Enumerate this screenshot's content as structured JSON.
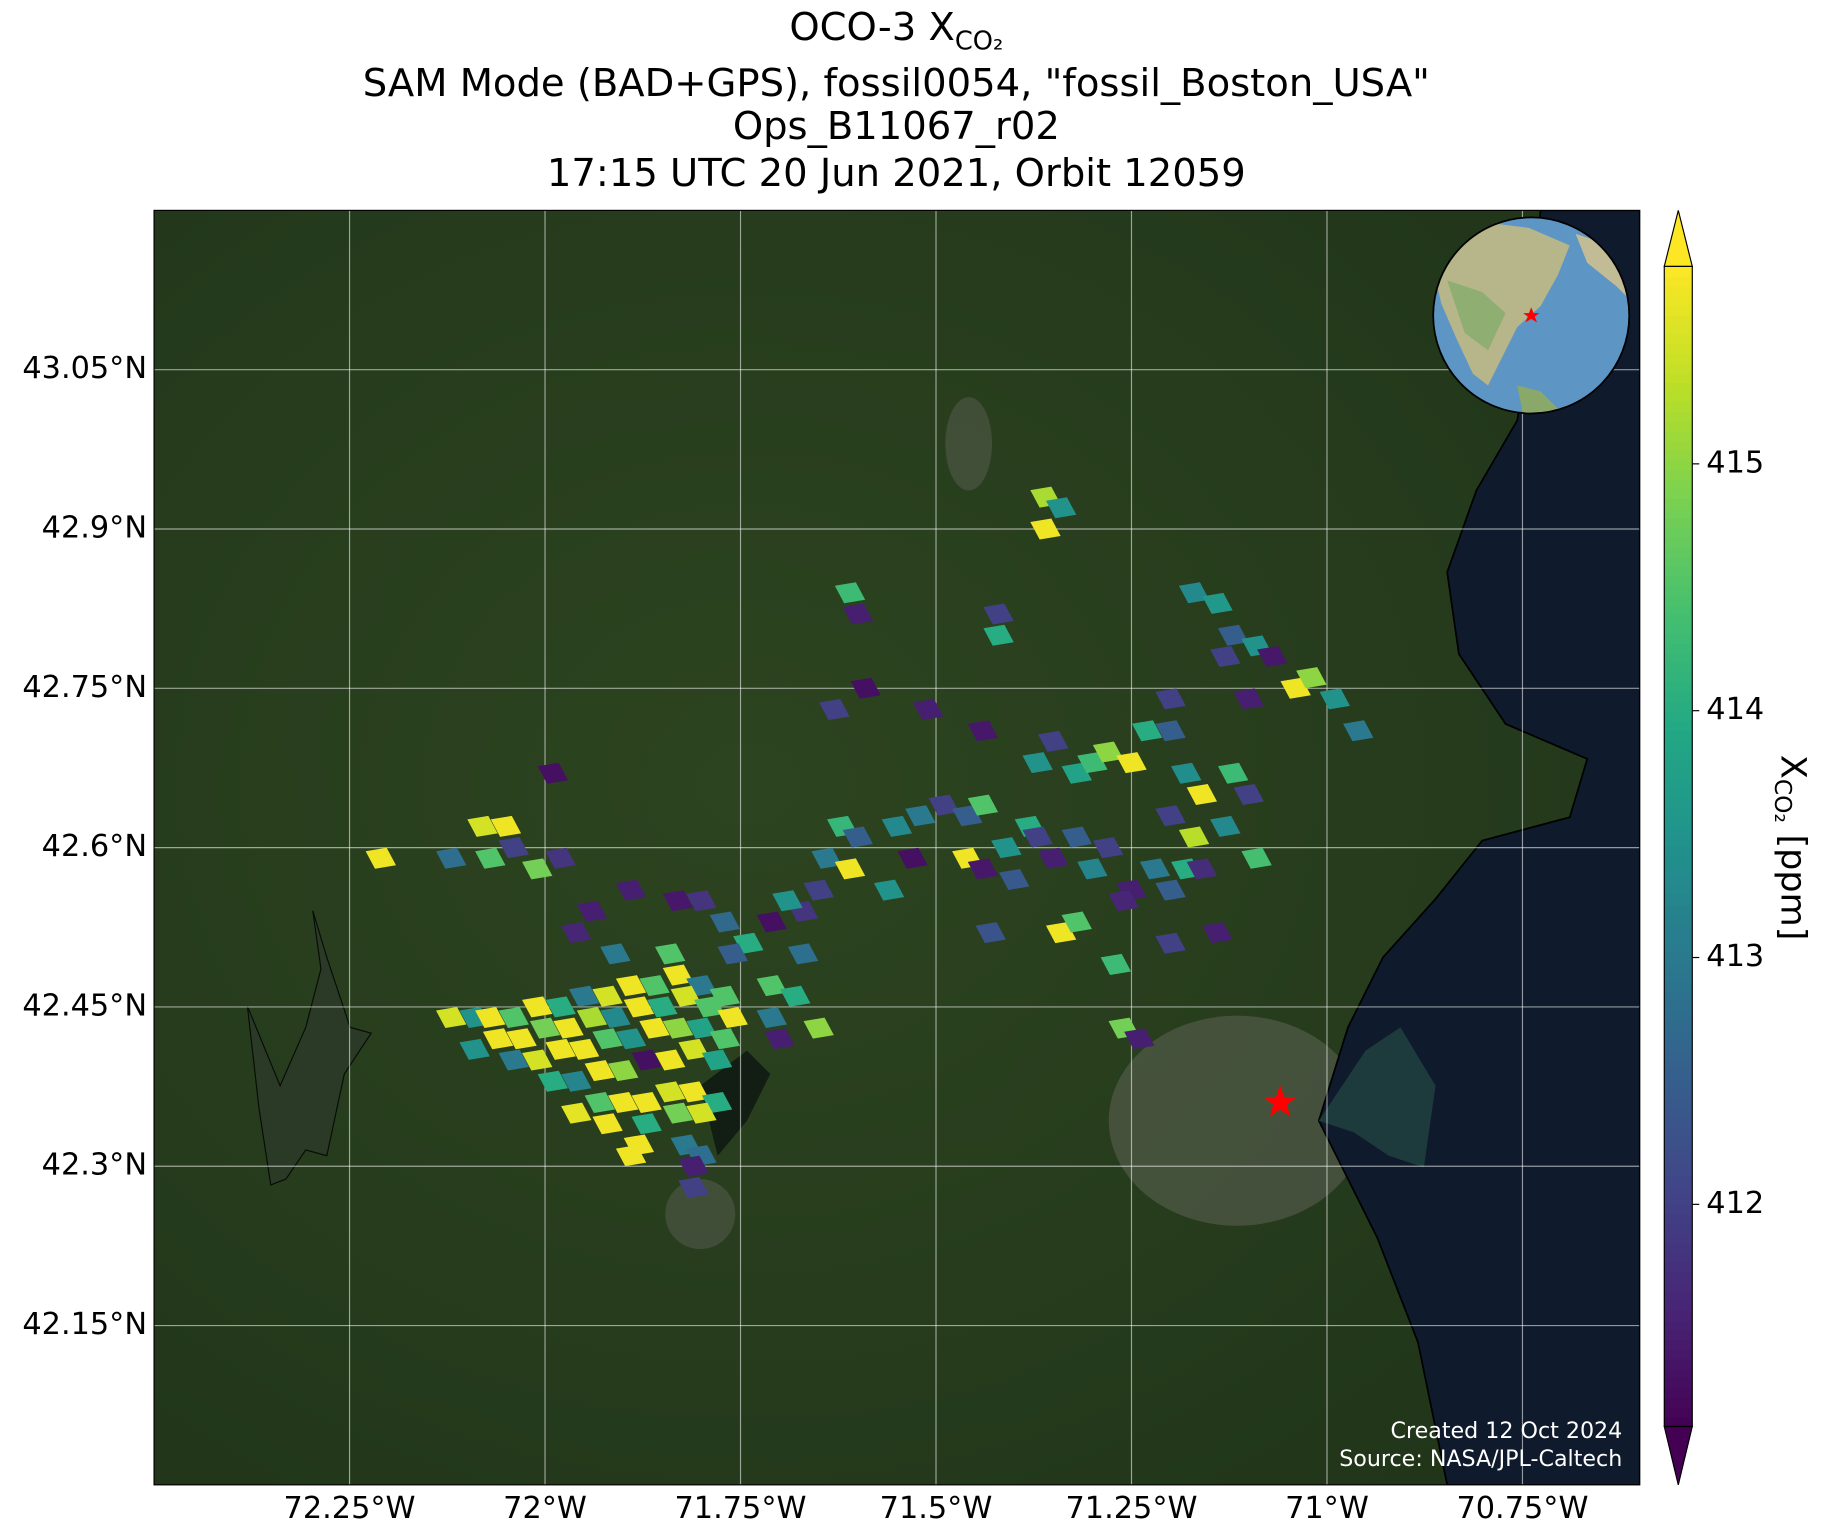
{
  "chart_data": {
    "type": "map-scatter",
    "title": {
      "text": "OCO-3 X",
      "subscript": "CO₂"
    },
    "subtitles": [
      "SAM Mode (BAD+GPS), fossil0054, \"fossil_Boston_USA\"",
      "Ops_B11067_r02",
      "17:15 UTC 20 Jun 2021, Orbit 12059"
    ],
    "xlim": [
      -72.5,
      -70.6
    ],
    "ylim": [
      42.0,
      43.2
    ],
    "xticks": [
      {
        "value": -72.25,
        "label": "72.25°W"
      },
      {
        "value": -72,
        "label": "72°W"
      },
      {
        "value": -71.75,
        "label": "71.75°W"
      },
      {
        "value": -71.5,
        "label": "71.5°W"
      },
      {
        "value": -71.25,
        "label": "71.25°W"
      },
      {
        "value": -71,
        "label": "71°W"
      },
      {
        "value": -70.75,
        "label": "70.75°W"
      }
    ],
    "yticks": [
      {
        "value": 42.15,
        "label": "42.15°N"
      },
      {
        "value": 42.3,
        "label": "42.3°N"
      },
      {
        "value": 42.45,
        "label": "42.45°N"
      },
      {
        "value": 42.6,
        "label": "42.6°N"
      },
      {
        "value": 42.75,
        "label": "42.75°N"
      },
      {
        "value": 42.9,
        "label": "42.9°N"
      },
      {
        "value": 43.05,
        "label": "43.05°N"
      }
    ],
    "grid": true,
    "colormap": "viridis",
    "clim": [
      411.1,
      415.8
    ],
    "cticks": [
      412,
      413,
      414,
      415
    ],
    "colorbar_label": {
      "text": "X",
      "subscript": "CO₂",
      "suffix": "[ppm]"
    },
    "target": {
      "x": -71.06,
      "y": 42.36,
      "color": "#ff0000"
    },
    "credits": [
      "Created 12 Oct 2024",
      "Source: NASA/JPL-Caltech"
    ],
    "x": [
      -71.36,
      -71.34,
      -71.36,
      -71.61,
      -71.6,
      -71.42,
      -71.42,
      -71.59,
      -71.63,
      -71.51,
      -71.44,
      -71.99,
      -71.17,
      -71.14,
      -71.12,
      -71.09,
      -71.07,
      -71.04,
      -71.02,
      -70.99,
      -70.96,
      -71.1,
      -71.13,
      -71.2,
      -71.2,
      -71.37,
      -71.35,
      -71.32,
      -71.3,
      -71.28,
      -71.25,
      -71.23,
      -71.18,
      -71.16,
      -71.12,
      -71.1,
      -71.2,
      -71.17,
      -71.13,
      -71.09,
      -71.55,
      -71.52,
      -71.49,
      -71.46,
      -71.44,
      -71.46,
      -71.44,
      -71.41,
      -71.38,
      -71.4,
      -71.37,
      -71.35,
      -71.32,
      -71.3,
      -71.28,
      -71.25,
      -71.22,
      -71.2,
      -71.18,
      -71.16,
      -71.34,
      -71.32,
      -71.27,
      -71.26,
      -71.2,
      -71.14,
      -71.43,
      -71.53,
      -71.56,
      -71.62,
      -71.6,
      -71.64,
      -71.61,
      -71.65,
      -71.67,
      -71.71,
      -71.69,
      -71.74,
      -71.67,
      -71.77,
      -72.21,
      -72.12,
      -72.08,
      -72.07,
      -72.04,
      -72.05,
      -72.01,
      -71.98,
      -71.94,
      -71.89,
      -71.83,
      -71.8,
      -71.76,
      -71.96,
      -71.91,
      -71.84,
      -72.12,
      -72.09,
      -72.07,
      -72.04,
      -72.01,
      -71.98,
      -71.95,
      -71.92,
      -71.89,
      -71.86,
      -71.83,
      -71.8,
      -71.77,
      -72.09,
      -72.06,
      -72.03,
      -72.0,
      -71.97,
      -71.94,
      -71.91,
      -71.88,
      -71.85,
      -71.82,
      -71.79,
      -71.76,
      -72.04,
      -72.01,
      -71.98,
      -71.95,
      -71.92,
      -71.89,
      -71.86,
      -71.83,
      -71.8,
      -71.77,
      -71.99,
      -71.96,
      -71.93,
      -71.9,
      -71.87,
      -71.84,
      -71.81,
      -71.78,
      -71.96,
      -71.93,
      -71.9,
      -71.87,
      -71.84,
      -71.81,
      -71.78,
      -71.92,
      -71.87,
      -71.83,
      -71.8,
      -71.88,
      -71.82,
      -71.8,
      -71.89,
      -71.81,
      -71.81,
      -71.71,
      -71.68,
      -71.65,
      -71.71,
      -71.7,
      -71.26,
      -71.24
    ],
    "y": [
      42.93,
      42.92,
      42.9,
      42.84,
      42.82,
      42.82,
      42.8,
      42.75,
      42.73,
      42.73,
      42.71,
      42.67,
      42.84,
      42.83,
      42.8,
      42.79,
      42.78,
      42.75,
      42.76,
      42.74,
      42.71,
      42.74,
      42.78,
      42.74,
      42.71,
      42.68,
      42.7,
      42.67,
      42.68,
      42.69,
      42.68,
      42.71,
      42.67,
      42.65,
      42.67,
      42.65,
      42.63,
      42.61,
      42.62,
      42.59,
      42.62,
      42.63,
      42.64,
      42.63,
      42.64,
      42.59,
      42.58,
      42.6,
      42.62,
      42.57,
      42.61,
      42.59,
      42.61,
      42.58,
      42.6,
      42.56,
      42.58,
      42.56,
      42.58,
      42.58,
      42.52,
      42.53,
      42.49,
      42.55,
      42.51,
      42.52,
      42.52,
      42.59,
      42.56,
      42.62,
      42.61,
      42.59,
      42.58,
      42.56,
      42.54,
      42.53,
      42.55,
      42.51,
      42.5,
      42.53,
      42.59,
      42.59,
      42.62,
      42.59,
      42.6,
      42.62,
      42.58,
      42.59,
      42.54,
      42.56,
      42.55,
      42.55,
      42.5,
      42.52,
      42.5,
      42.5,
      42.44,
      42.44,
      42.44,
      42.44,
      42.45,
      42.45,
      42.46,
      42.46,
      42.47,
      42.47,
      42.48,
      42.47,
      42.46,
      42.41,
      42.42,
      42.42,
      42.43,
      42.43,
      42.44,
      42.44,
      42.45,
      42.45,
      42.46,
      42.45,
      42.44,
      42.4,
      42.4,
      42.41,
      42.41,
      42.42,
      42.42,
      42.43,
      42.43,
      42.43,
      42.42,
      42.38,
      42.38,
      42.39,
      42.39,
      42.4,
      42.4,
      42.41,
      42.4,
      42.35,
      42.36,
      42.36,
      42.36,
      42.37,
      42.37,
      42.36,
      42.34,
      42.34,
      42.35,
      42.35,
      42.32,
      42.32,
      42.31,
      42.31,
      42.3,
      42.28,
      42.47,
      42.46,
      42.43,
      42.44,
      42.42,
      42.43,
      42.42
    ],
    "values": [
      415.2,
      413.5,
      415.7,
      414.3,
      411.5,
      412,
      414,
      411.3,
      412,
      411.5,
      411.4,
      411.3,
      413.3,
      413.6,
      412.5,
      413.5,
      411.4,
      415.7,
      415,
      413.5,
      413,
      411.5,
      412,
      412,
      412.5,
      413.5,
      412,
      413.8,
      414.3,
      415,
      415.7,
      414,
      413.4,
      415.7,
      414.3,
      412,
      412,
      415.3,
      413.3,
      414.4,
      413.3,
      413,
      412,
      412.5,
      414.5,
      415.7,
      411.4,
      413.5,
      414,
      412.4,
      412,
      411.5,
      412.5,
      413.2,
      412,
      411.5,
      413,
      412.5,
      414,
      411.7,
      415.7,
      414.5,
      414.3,
      411.6,
      412,
      411.5,
      412.3,
      411.3,
      413.5,
      414.2,
      412.5,
      413,
      415.7,
      412,
      411.8,
      411.3,
      413.5,
      414,
      412.8,
      412.7,
      415.7,
      412.8,
      415.5,
      414.5,
      412,
      415.7,
      414.8,
      411.8,
      411.5,
      411.5,
      411.4,
      411.8,
      412.5,
      411.6,
      413,
      414.5,
      415.5,
      413.5,
      415.7,
      414.5,
      415.7,
      414,
      413,
      415.5,
      415.7,
      414.5,
      415.7,
      413,
      414.5,
      413.5,
      415.7,
      415.7,
      414.8,
      415.7,
      415.2,
      413.3,
      415.7,
      414,
      415.5,
      414.5,
      415.7,
      413,
      415.5,
      415.7,
      415.7,
      414.5,
      413.5,
      415.7,
      415,
      413.8,
      414.5,
      414,
      413.2,
      415.7,
      415,
      411.3,
      415.7,
      415.5,
      413.8,
      415.6,
      414.5,
      415.7,
      415.7,
      415.5,
      415.7,
      414,
      415.7,
      414,
      414.8,
      415.5,
      415.7,
      413,
      412.8,
      415.7,
      411.5,
      412,
      414.5,
      414,
      415,
      413,
      411.5,
      414.8,
      411.5
    ]
  }
}
